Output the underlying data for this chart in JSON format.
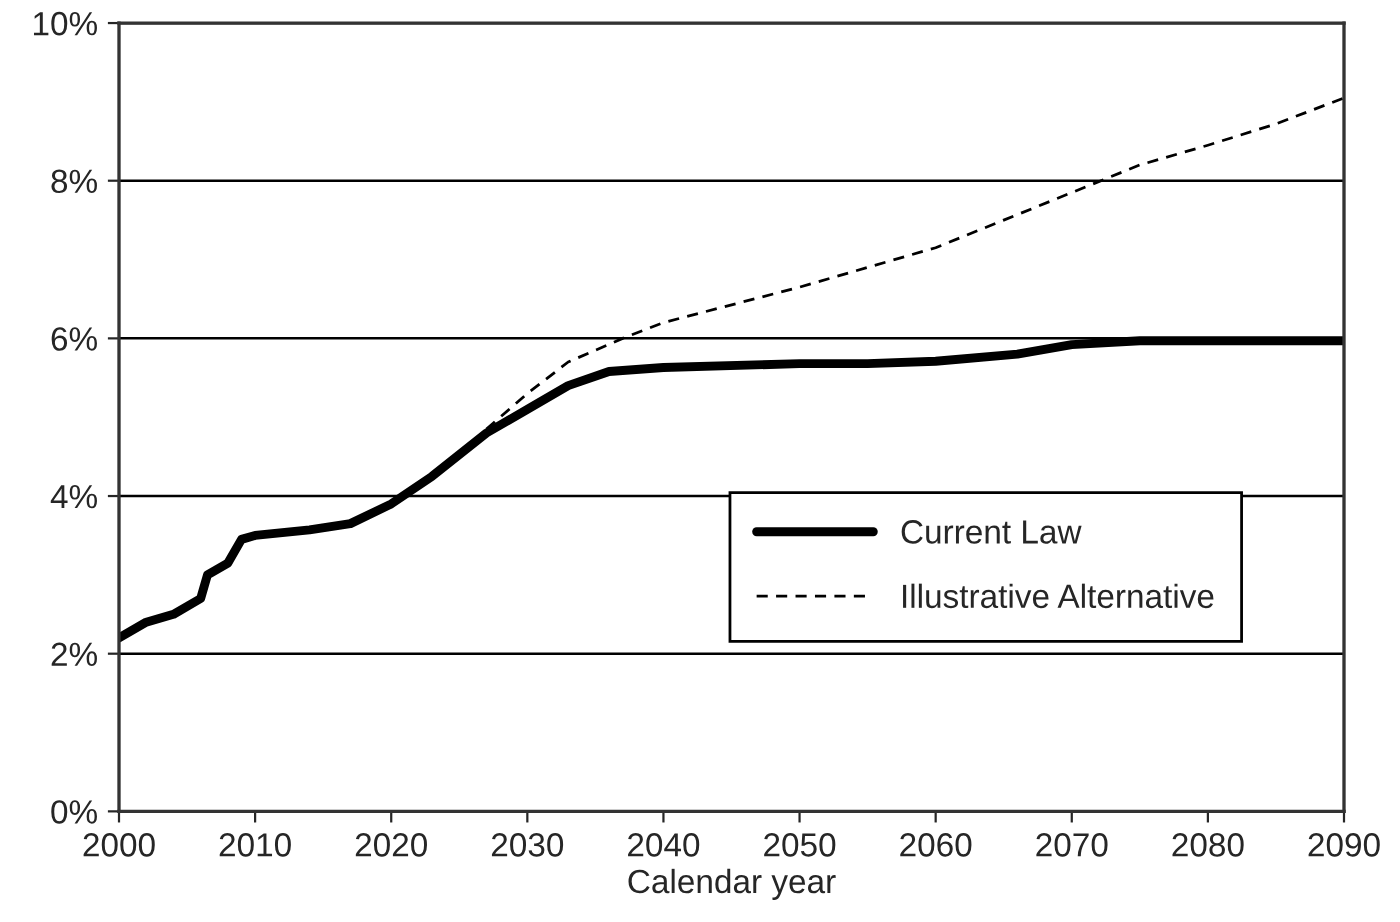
{
  "chart_data": {
    "type": "line",
    "xlabel": "Calendar year",
    "xlim": [
      2000,
      2090
    ],
    "xticks": [
      2000,
      2010,
      2020,
      2030,
      2040,
      2050,
      2060,
      2070,
      2080,
      2090
    ],
    "ylim": [
      0,
      10
    ],
    "yticks": [
      {
        "value": 0,
        "label": "0%"
      },
      {
        "value": 2,
        "label": "2%"
      },
      {
        "value": 4,
        "label": "4%"
      },
      {
        "value": 6,
        "label": "6%"
      },
      {
        "value": 8,
        "label": "8%"
      },
      {
        "value": 10,
        "label": "10%"
      }
    ],
    "grid": "y",
    "legend": "right",
    "series": [
      {
        "name": "Current Law",
        "color": "#000000",
        "line_style": "solid",
        "x": [
          2000,
          2002,
          2004,
          2006,
          2006.5,
          2008,
          2009,
          2010,
          2014,
          2017,
          2020,
          2023,
          2027,
          2030,
          2033,
          2036,
          2040,
          2050,
          2055,
          2060,
          2066,
          2070,
          2075,
          2090
        ],
        "values": [
          2.2,
          2.4,
          2.5,
          2.7,
          3.0,
          3.15,
          3.45,
          3.5,
          3.57,
          3.65,
          3.9,
          4.25,
          4.8,
          5.1,
          5.4,
          5.58,
          5.63,
          5.68,
          5.68,
          5.71,
          5.8,
          5.92,
          5.97,
          5.97
        ]
      },
      {
        "name": "Illustrative Alternative",
        "color": "#000000",
        "line_style": "dashed",
        "x": [
          2027,
          2030,
          2033,
          2037,
          2040,
          2050,
          2060,
          2065,
          2070,
          2075,
          2080,
          2085,
          2090
        ],
        "values": [
          4.85,
          5.3,
          5.7,
          6.0,
          6.2,
          6.65,
          7.15,
          7.5,
          7.85,
          8.2,
          8.45,
          8.72,
          9.05
        ]
      }
    ]
  }
}
